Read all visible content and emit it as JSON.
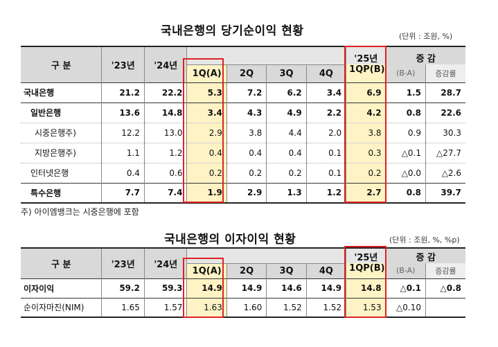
{
  "table1": {
    "title": "국내은행의 당기순이익 현황",
    "unit": "(단위 : 조원, %)",
    "header": {
      "category": "구 분",
      "y23": "'23년",
      "y24": "'24년",
      "q1": "1Q(A)",
      "q2": "2Q",
      "q3": "3Q",
      "q4": "4Q",
      "y25_top": "'25년",
      "y25_bottom": "1QP(B)",
      "change": "증 감",
      "change_sub": "(B-A)",
      "rate": "증감률"
    },
    "rows": [
      {
        "label": "국내은행",
        "v": [
          "21.2",
          "22.2",
          "5.3",
          "7.2",
          "6.2",
          "3.4",
          "6.9",
          "1.5",
          "28.7"
        ]
      },
      {
        "label": "일반은행",
        "v": [
          "13.6",
          "14.8",
          "3.4",
          "4.3",
          "4.9",
          "2.2",
          "4.2",
          "0.8",
          "22.6"
        ]
      },
      {
        "label": "시중은행주)",
        "v": [
          "12.2",
          "13.0",
          "2.9",
          "3.8",
          "4.4",
          "2.0",
          "3.8",
          "0.9",
          "30.3"
        ]
      },
      {
        "label": "지방은행주)",
        "v": [
          "1.1",
          "1.2",
          "0.4",
          "0.4",
          "0.4",
          "0.1",
          "0.3",
          "△0.1",
          "△27.7"
        ]
      },
      {
        "label": "인터넷은행",
        "v": [
          "0.4",
          "0.6",
          "0.2",
          "0.2",
          "0.2",
          "0.1",
          "0.2",
          "△0.0",
          "△2.6"
        ]
      },
      {
        "label": "특수은행",
        "v": [
          "7.7",
          "7.4",
          "1.9",
          "2.9",
          "1.3",
          "1.2",
          "2.7",
          "0.8",
          "39.7"
        ]
      }
    ],
    "footnote": "주) 아이엠뱅크는 시중은행에 포함"
  },
  "table2": {
    "title": "국내은행의 이자이익 현황",
    "unit": "(단위 : 조원, %, %p)",
    "header": {
      "category": "구 분",
      "y23": "'23년",
      "y24": "'24년",
      "q1": "1Q(A)",
      "q2": "2Q",
      "q3": "3Q",
      "q4": "4Q",
      "y25_top": "'25년",
      "y25_bottom": "1QP(B)",
      "change": "증 감",
      "change_sub": "(B-A)",
      "rate": "증감률"
    },
    "rows": [
      {
        "label": "이자이익",
        "v": [
          "59.2",
          "59.3",
          "14.9",
          "14.9",
          "14.6",
          "14.9",
          "14.8",
          "△0.1",
          "△0.8"
        ]
      },
      {
        "label": "순이자마진(NIM)",
        "v": [
          "1.65",
          "1.57",
          "1.63",
          "1.60",
          "1.52",
          "1.52",
          "1.53",
          "△0.10",
          ""
        ]
      }
    ]
  }
}
